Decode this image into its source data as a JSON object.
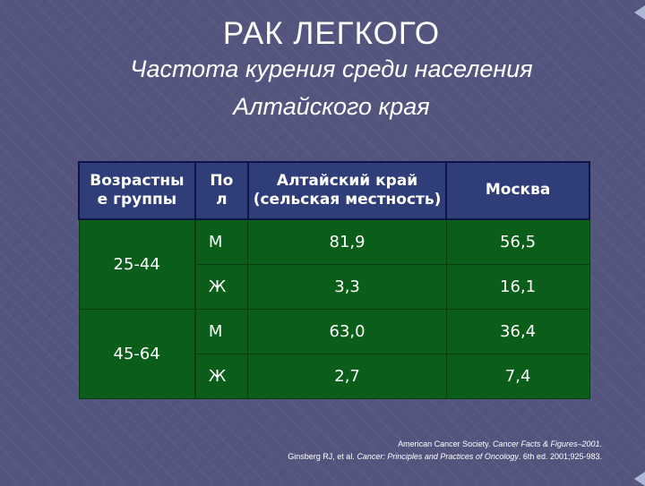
{
  "slide": {
    "title": "РАК ЛЕГКОГО",
    "subtitle_line1": "Частота курения среди населения",
    "subtitle_line2": "Алтайского края"
  },
  "table": {
    "headers": {
      "age_line1": "Возрастны",
      "age_line2": "е группы",
      "sex_line1": "По",
      "sex_line2": "л",
      "altai_line1": "Алтайский край",
      "altai_line2": "(сельская местность)",
      "moscow": "Москва"
    },
    "groups": [
      {
        "age": "25-44",
        "rows": [
          {
            "sex": "М",
            "altai": "81,9",
            "moscow": "56,5"
          },
          {
            "sex": "Ж",
            "altai": "3,3",
            "moscow": "16,1"
          }
        ]
      },
      {
        "age": "45-64",
        "rows": [
          {
            "sex": "М",
            "altai": "63,0",
            "moscow": "36,4"
          },
          {
            "sex": "Ж",
            "altai": "2,7",
            "moscow": "7,4"
          }
        ]
      }
    ]
  },
  "reference": {
    "line1_prefix": "American Cancer Society. ",
    "line1_italic": "Cancer Facts & Figures–2001.",
    "line2_prefix": "Ginsberg RJ, et al. ",
    "line2_italic": "Cancer: Principles and Practices of Oncology",
    "line2_suffix": ". 6th ed. 2001;925-983."
  },
  "colors": {
    "background": "#54557f",
    "header_fill": "#2f3e78",
    "body_fill": "#0a5e1a",
    "text": "#ffffff"
  }
}
